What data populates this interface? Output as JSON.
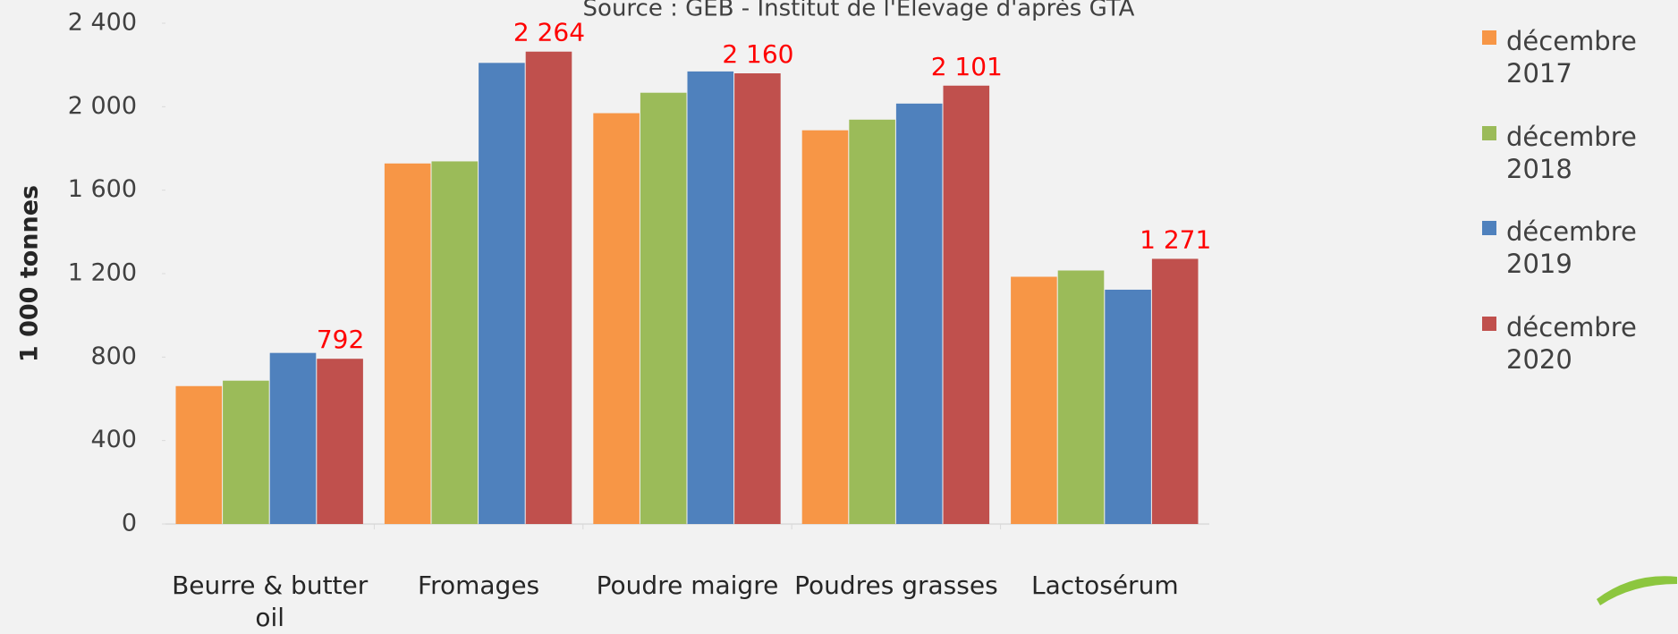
{
  "chart_data": {
    "type": "bar",
    "title": "Source : GEB - Institut de l'Elevage d'après GTA",
    "y_label": "1 000 tonnes",
    "categories": [
      "Beurre & butter oil",
      "Fromages",
      "Poudre maigre",
      "Poudres grasses",
      "Lactosérum"
    ],
    "series": [
      {
        "name": "décembre 2017",
        "color": "#f79646",
        "values": [
          661,
          1728,
          1969,
          1887,
          1185
        ]
      },
      {
        "name": "décembre 2018",
        "color": "#9bbb59",
        "values": [
          687,
          1738,
          2067,
          1938,
          1215
        ]
      },
      {
        "name": "décembre 2019",
        "color": "#4f81bd",
        "values": [
          820,
          2210,
          2169,
          2015,
          1123
        ]
      },
      {
        "name": "décembre 2020",
        "color": "#c0504d",
        "values": [
          792,
          2264,
          2160,
          2101,
          1271
        ],
        "value_labels": [
          "792",
          "2 264",
          "2 160",
          "2 101",
          "1 271"
        ]
      }
    ],
    "ylim": [
      0,
      2400
    ],
    "yticks": [
      0,
      400,
      800,
      {
        "value": 1200,
        "label": "1 200"
      },
      {
        "value": 1600,
        "label": "1 600"
      },
      {
        "value": 2000,
        "label": "2 000"
      },
      {
        "value": 2400,
        "label": "2 400"
      }
    ],
    "legend": "right"
  }
}
